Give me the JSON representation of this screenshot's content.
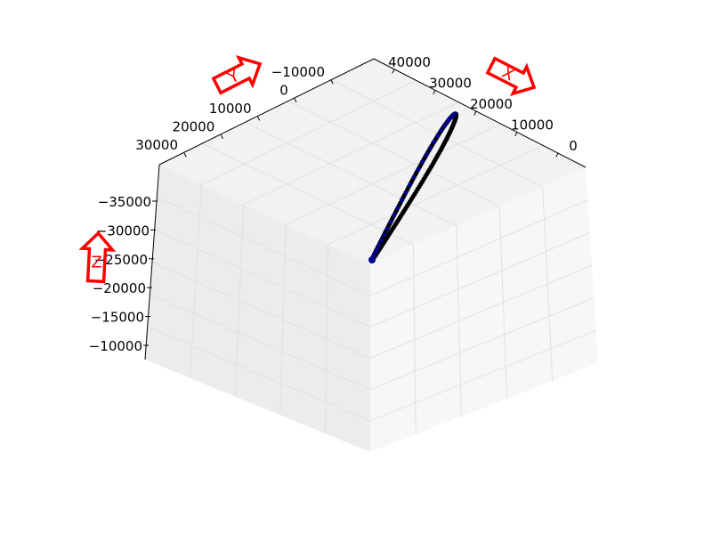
{
  "chart_data": {
    "type": "scatter",
    "projection": "3d",
    "x_ticks": [
      "0",
      "10000",
      "20000",
      "30000",
      "40000"
    ],
    "y_ticks": [
      "−10000",
      "0",
      "10000",
      "20000",
      "30000"
    ],
    "z_ticks": [
      "−35000",
      "−30000",
      "−25000",
      "−20000",
      "−15000",
      "−10000"
    ],
    "arrows": {
      "x": "X",
      "y": "Y",
      "z": "Z"
    },
    "series": [
      {
        "color": "#000000",
        "marker": "o",
        "shape": "closed-loop"
      },
      {
        "color": "#00008b",
        "marker": "o",
        "shape": "closed-loop"
      }
    ],
    "grid": true
  },
  "colors": {
    "pane_top": "#f2f2f2",
    "pane_left": "#ececec",
    "pane_right": "#f7f7f7",
    "grid": "#e0e0e0",
    "arrow": "#ff0000"
  }
}
